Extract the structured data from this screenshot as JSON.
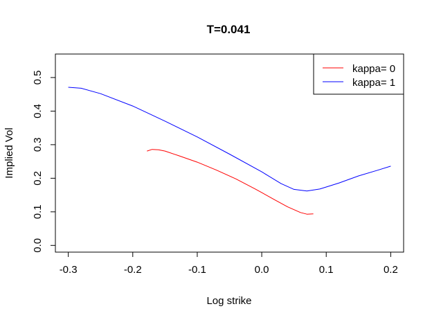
{
  "chart_data": {
    "type": "line",
    "title": "T=0.041",
    "xlabel": "Log strike",
    "ylabel": "Implied Vol",
    "xlim": [
      -0.32,
      0.22
    ],
    "ylim": [
      -0.02,
      0.57
    ],
    "x_ticks": [
      -0.3,
      -0.2,
      -0.1,
      0.0,
      0.1,
      0.2
    ],
    "x_tick_labels": [
      "-0.3",
      "-0.2",
      "-0.1",
      "0.0",
      "0.1",
      "0.2"
    ],
    "y_ticks": [
      0.0,
      0.1,
      0.2,
      0.3,
      0.4,
      0.5
    ],
    "y_tick_labels": [
      "0.0",
      "0.1",
      "0.2",
      "0.3",
      "0.4",
      "0.5"
    ],
    "grid": false,
    "legend_position": "top-right",
    "series": [
      {
        "name": "kappa= 0",
        "color": "#ff0000",
        "x": [
          -0.178,
          -0.17,
          -0.16,
          -0.15,
          -0.13,
          -0.1,
          -0.07,
          -0.04,
          -0.01,
          0.02,
          0.04,
          0.06,
          0.07,
          0.08
        ],
        "y": [
          0.281,
          0.286,
          0.285,
          0.281,
          0.268,
          0.248,
          0.224,
          0.198,
          0.168,
          0.136,
          0.115,
          0.098,
          0.093,
          0.094
        ]
      },
      {
        "name": "kappa= 1",
        "color": "#0000ff",
        "x": [
          -0.3,
          -0.28,
          -0.25,
          -0.2,
          -0.15,
          -0.1,
          -0.05,
          0.0,
          0.03,
          0.05,
          0.07,
          0.09,
          0.1,
          0.12,
          0.15,
          0.18,
          0.2
        ],
        "y": [
          0.471,
          0.468,
          0.452,
          0.415,
          0.37,
          0.323,
          0.272,
          0.219,
          0.184,
          0.167,
          0.162,
          0.168,
          0.174,
          0.186,
          0.207,
          0.224,
          0.236
        ]
      }
    ]
  }
}
